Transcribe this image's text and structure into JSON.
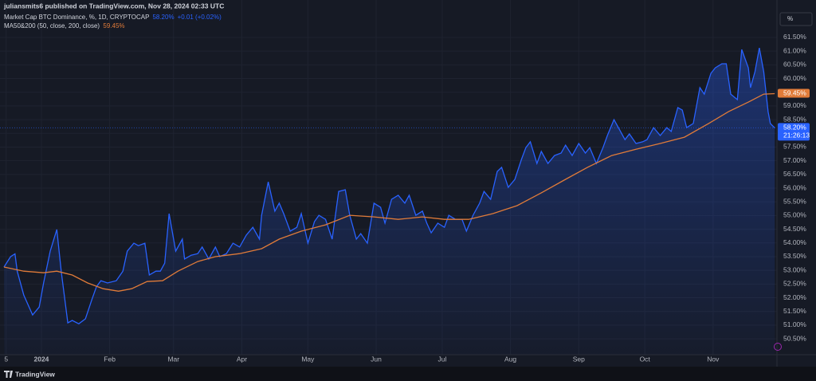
{
  "header": {
    "published": "juliansmits6 published on TradingView.com, Nov 28, 2024 02:33 UTC",
    "scale_button": "%"
  },
  "footer": {
    "brand": "TradingView"
  },
  "chart_data": {
    "type": "line",
    "series": [
      {
        "name": "Market Cap BTC Dominance, %, 1D, CRYPTOCAP",
        "value_label": "58.20%",
        "change": "+0.01 (+0.02%)",
        "countdown": "21:26:13",
        "color": "#2962ff",
        "area": true,
        "x": [
          -17,
          -14,
          -12,
          -11,
          -8,
          -4,
          -1,
          1,
          4,
          7,
          9,
          12,
          14,
          17,
          20,
          23,
          25,
          27,
          30,
          34,
          37,
          39,
          42,
          44,
          47,
          49,
          52,
          54,
          56,
          58,
          61,
          64,
          65,
          68,
          71,
          73,
          76,
          79,
          81,
          84,
          87,
          90,
          93,
          96,
          99,
          100,
          103,
          106,
          108,
          110,
          113,
          116,
          118,
          121,
          124,
          126,
          129,
          132,
          135,
          138,
          140,
          143,
          145,
          148,
          151,
          154,
          156,
          159,
          162,
          165,
          167,
          170,
          173,
          175,
          177,
          180,
          183,
          185,
          188,
          191,
          193,
          196,
          199,
          201,
          204,
          207,
          209,
          212,
          215,
          218,
          220,
          222,
          225,
          227,
          230,
          233,
          236,
          238,
          241,
          244,
          247,
          249,
          252,
          255,
          257,
          260,
          262,
          265,
          267,
          270,
          273,
          275,
          278,
          281,
          284,
          286,
          289,
          291,
          293,
          296,
          299,
          301,
          304,
          306,
          309,
          311,
          313,
          316,
          318,
          321,
          322,
          324,
          326,
          328,
          330,
          331,
          333
        ],
        "values": [
          53.12,
          53.5,
          53.6,
          52.97,
          52.1,
          51.37,
          51.66,
          52.54,
          53.7,
          54.49,
          52.97,
          51.08,
          51.17,
          51.05,
          51.23,
          51.95,
          52.4,
          52.62,
          52.54,
          52.62,
          52.97,
          53.7,
          53.99,
          53.9,
          53.99,
          52.83,
          52.97,
          52.97,
          53.26,
          55.07,
          53.7,
          54.14,
          53.41,
          53.55,
          53.61,
          53.85,
          53.41,
          53.85,
          53.5,
          53.61,
          53.99,
          53.85,
          54.28,
          54.57,
          54.14,
          55.01,
          56.23,
          55.16,
          55.45,
          55.07,
          54.43,
          54.57,
          55.07,
          53.99,
          54.78,
          55.01,
          54.86,
          54.14,
          55.88,
          55.94,
          55.01,
          54.14,
          54.34,
          53.99,
          55.45,
          55.3,
          54.72,
          55.59,
          55.74,
          55.45,
          55.74,
          55.01,
          55.16,
          54.72,
          54.37,
          54.72,
          54.57,
          55.01,
          54.86,
          54.86,
          54.43,
          55.01,
          55.45,
          55.88,
          55.59,
          56.61,
          56.76,
          56.03,
          56.32,
          57.05,
          57.48,
          57.69,
          56.9,
          57.34,
          56.9,
          57.19,
          57.28,
          57.57,
          57.19,
          57.63,
          57.28,
          57.48,
          56.9,
          57.48,
          57.92,
          58.5,
          58.21,
          57.77,
          57.98,
          57.63,
          57.69,
          57.77,
          58.21,
          57.92,
          58.21,
          58.07,
          58.94,
          58.85,
          58.21,
          58.36,
          59.67,
          59.43,
          60.19,
          60.39,
          60.54,
          60.54,
          59.43,
          59.23,
          61.06,
          60.39,
          59.67,
          60.25,
          61.12,
          60.25,
          58.79,
          58.36,
          58.2
        ]
      },
      {
        "name": "MA50&200 (50, close, 200, close)",
        "value_label": "59.45%",
        "color": "#e07b39",
        "x": [
          -17,
          -8,
          1,
          7,
          14,
          21,
          28,
          35,
          41,
          48,
          55,
          62,
          71,
          79,
          90,
          100,
          108,
          118,
          129,
          140,
          151,
          162,
          173,
          183,
          194,
          205,
          216,
          227,
          238,
          248,
          259,
          270,
          281,
          292,
          303,
          312,
          321,
          328,
          333
        ],
        "values": [
          53.12,
          52.97,
          52.91,
          52.97,
          52.83,
          52.54,
          52.33,
          52.24,
          52.33,
          52.59,
          52.62,
          52.97,
          53.32,
          53.5,
          53.61,
          53.79,
          54.14,
          54.43,
          54.66,
          55.01,
          54.95,
          54.86,
          54.95,
          54.86,
          54.86,
          55.07,
          55.36,
          55.83,
          56.32,
          56.76,
          57.19,
          57.42,
          57.63,
          57.86,
          58.36,
          58.79,
          59.14,
          59.43,
          59.45
        ]
      }
    ],
    "xlim": [
      -18.8,
      334
    ],
    "xticks": [
      {
        "value": -16,
        "label": "5"
      },
      {
        "value": 0,
        "label": "2024"
      },
      {
        "value": 31,
        "label": "Feb"
      },
      {
        "value": 60,
        "label": "Mar"
      },
      {
        "value": 91,
        "label": "Apr"
      },
      {
        "value": 121,
        "label": "May"
      },
      {
        "value": 152,
        "label": "Jun"
      },
      {
        "value": 182,
        "label": "Jul"
      },
      {
        "value": 213,
        "label": "Aug"
      },
      {
        "value": 244,
        "label": "Sep"
      },
      {
        "value": 274,
        "label": "Oct"
      },
      {
        "value": 305,
        "label": "Nov"
      }
    ],
    "ylim": [
      49.92,
      62.46
    ],
    "yticks": [
      {
        "value": 50.5,
        "label": "50.50%"
      },
      {
        "value": 51,
        "label": "51.00%"
      },
      {
        "value": 51.5,
        "label": "51.50%"
      },
      {
        "value": 52,
        "label": "52.00%"
      },
      {
        "value": 52.5,
        "label": "52.50%"
      },
      {
        "value": 53,
        "label": "53.00%"
      },
      {
        "value": 53.5,
        "label": "53.50%"
      },
      {
        "value": 54,
        "label": "54.00%"
      },
      {
        "value": 54.5,
        "label": "54.50%"
      },
      {
        "value": 55,
        "label": "55.00%"
      },
      {
        "value": 55.5,
        "label": "55.50%"
      },
      {
        "value": 56,
        "label": "56.00%"
      },
      {
        "value": 56.5,
        "label": "56.50%"
      },
      {
        "value": 57,
        "label": "57.00%"
      },
      {
        "value": 57.5,
        "label": "57.50%"
      },
      {
        "value": 58,
        "label": "58.00%"
      },
      {
        "value": 58.5,
        "label": "58.50%"
      },
      {
        "value": 59,
        "label": "59.00%"
      },
      {
        "value": 59.5,
        "label": "59.50%"
      },
      {
        "value": 60,
        "label": "60.00%"
      },
      {
        "value": 60.5,
        "label": "60.50%"
      },
      {
        "value": 61,
        "label": "61.00%"
      },
      {
        "value": 61.5,
        "label": "61.50%"
      }
    ],
    "grid": true
  }
}
